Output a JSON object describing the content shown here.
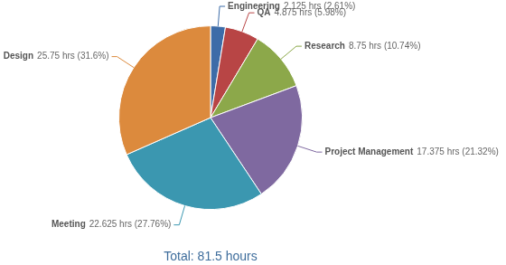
{
  "chart_data": {
    "type": "pie",
    "subtitle": "Total: 81.5 hours",
    "categories": [
      "Engineering",
      "QA",
      "Research",
      "Project Management",
      "Meeting",
      "Design"
    ],
    "values": [
      2.125,
      4.875,
      8.75,
      17.375,
      22.625,
      25.75
    ],
    "value_labels": [
      "2.125 hrs (2.61%)",
      "4.875 hrs (5.98%)",
      "8.75 hrs (10.74%)",
      "17.375 hrs (21.32%)",
      "22.625 hrs (27.76%)",
      "25.75 hrs (31.6%)"
    ],
    "colors": [
      "#3d6ca8",
      "#b84545",
      "#8ca84a",
      "#7f69a0",
      "#3b97b0",
      "#dc8a3d"
    ],
    "data_labels": true
  }
}
